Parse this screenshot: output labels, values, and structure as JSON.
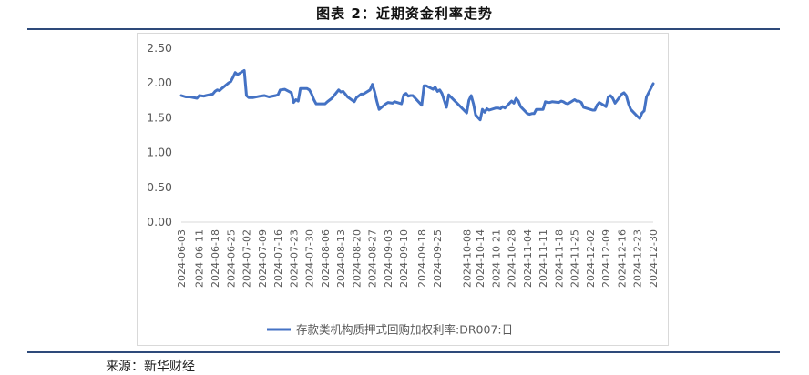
{
  "figure": {
    "title": "图表 2：近期资金利率走势",
    "source": "来源：新华财经"
  },
  "chart_data": {
    "type": "line",
    "title": "",
    "xlabel": "",
    "ylabel": "",
    "ylim": [
      0,
      2.5
    ],
    "yticks": [
      0.0,
      0.5,
      1.0,
      1.5,
      2.0,
      2.5
    ],
    "ytick_labels": [
      "0.00",
      "0.50",
      "1.00",
      "1.50",
      "2.00",
      "2.50"
    ],
    "grid": false,
    "legend_position": "bottom",
    "line_color": "#4472c4",
    "xtick_labels": [
      "2024-06-03",
      "2024-06-11",
      "2024-06-18",
      "2024-06-25",
      "2024-07-02",
      "2024-07-09",
      "2024-07-16",
      "2024-07-23",
      "2024-07-30",
      "2024-08-06",
      "2024-08-13",
      "2024-08-20",
      "2024-08-27",
      "2024-09-03",
      "2024-09-10",
      "2024-09-18",
      "2024-09-25",
      "2024-10-08",
      "2024-10-14",
      "2024-10-21",
      "2024-10-28",
      "2024-11-04",
      "2024-11-11",
      "2024-11-18",
      "2024-11-25",
      "2024-12-02",
      "2024-12-09",
      "2024-12-16",
      "2024-12-23",
      "2024-12-30"
    ],
    "series": [
      {
        "name": "存款类机构质押式回购加权利率:DR007:日",
        "points": [
          [
            "2024-06-03",
            1.82
          ],
          [
            "2024-06-05",
            1.8
          ],
          [
            "2024-06-07",
            1.8
          ],
          [
            "2024-06-10",
            1.78
          ],
          [
            "2024-06-11",
            1.82
          ],
          [
            "2024-06-13",
            1.81
          ],
          [
            "2024-06-14",
            1.82
          ],
          [
            "2024-06-17",
            1.84
          ],
          [
            "2024-06-18",
            1.88
          ],
          [
            "2024-06-19",
            1.9
          ],
          [
            "2024-06-20",
            1.89
          ],
          [
            "2024-06-21",
            1.92
          ],
          [
            "2024-06-24",
            2.0
          ],
          [
            "2024-06-25",
            2.02
          ],
          [
            "2024-06-26",
            2.08
          ],
          [
            "2024-06-27",
            2.15
          ],
          [
            "2024-06-28",
            2.12
          ],
          [
            "2024-07-01",
            2.18
          ],
          [
            "2024-07-02",
            1.82
          ],
          [
            "2024-07-03",
            1.79
          ],
          [
            "2024-07-05",
            1.79
          ],
          [
            "2024-07-08",
            1.81
          ],
          [
            "2024-07-10",
            1.82
          ],
          [
            "2024-07-12",
            1.8
          ],
          [
            "2024-07-15",
            1.82
          ],
          [
            "2024-07-16",
            1.83
          ],
          [
            "2024-07-17",
            1.9
          ],
          [
            "2024-07-19",
            1.91
          ],
          [
            "2024-07-22",
            1.86
          ],
          [
            "2024-07-23",
            1.72
          ],
          [
            "2024-07-24",
            1.76
          ],
          [
            "2024-07-25",
            1.74
          ],
          [
            "2024-07-26",
            1.92
          ],
          [
            "2024-07-29",
            1.92
          ],
          [
            "2024-07-30",
            1.9
          ],
          [
            "2024-07-31",
            1.84
          ],
          [
            "2024-08-01",
            1.76
          ],
          [
            "2024-08-02",
            1.7
          ],
          [
            "2024-08-05",
            1.7
          ],
          [
            "2024-08-06",
            1.7
          ],
          [
            "2024-08-07",
            1.73
          ],
          [
            "2024-08-09",
            1.78
          ],
          [
            "2024-08-12",
            1.9
          ],
          [
            "2024-08-13",
            1.87
          ],
          [
            "2024-08-14",
            1.88
          ],
          [
            "2024-08-15",
            1.84
          ],
          [
            "2024-08-16",
            1.8
          ],
          [
            "2024-08-19",
            1.73
          ],
          [
            "2024-08-20",
            1.79
          ],
          [
            "2024-08-22",
            1.84
          ],
          [
            "2024-08-23",
            1.84
          ],
          [
            "2024-08-26",
            1.9
          ],
          [
            "2024-08-27",
            1.98
          ],
          [
            "2024-08-28",
            1.88
          ],
          [
            "2024-08-29",
            1.74
          ],
          [
            "2024-08-30",
            1.62
          ],
          [
            "2024-09-02",
            1.7
          ],
          [
            "2024-09-03",
            1.72
          ],
          [
            "2024-09-05",
            1.71
          ],
          [
            "2024-09-06",
            1.73
          ],
          [
            "2024-09-09",
            1.7
          ],
          [
            "2024-09-10",
            1.83
          ],
          [
            "2024-09-11",
            1.85
          ],
          [
            "2024-09-12",
            1.81
          ],
          [
            "2024-09-13",
            1.82
          ],
          [
            "2024-09-14",
            1.82
          ],
          [
            "2024-09-18",
            1.68
          ],
          [
            "2024-09-19",
            1.96
          ],
          [
            "2024-09-20",
            1.96
          ],
          [
            "2024-09-23",
            1.91
          ],
          [
            "2024-09-24",
            1.94
          ],
          [
            "2024-09-25",
            1.88
          ],
          [
            "2024-09-26",
            1.9
          ],
          [
            "2024-09-27",
            1.85
          ],
          [
            "2024-09-29",
            1.65
          ],
          [
            "2024-09-30",
            1.83
          ],
          [
            "2024-10-08",
            1.57
          ],
          [
            "2024-10-09",
            1.75
          ],
          [
            "2024-10-10",
            1.82
          ],
          [
            "2024-10-11",
            1.7
          ],
          [
            "2024-10-12",
            1.54
          ],
          [
            "2024-10-14",
            1.47
          ],
          [
            "2024-10-15",
            1.62
          ],
          [
            "2024-10-16",
            1.58
          ],
          [
            "2024-10-17",
            1.63
          ],
          [
            "2024-10-18",
            1.61
          ],
          [
            "2024-10-21",
            1.64
          ],
          [
            "2024-10-22",
            1.64
          ],
          [
            "2024-10-23",
            1.63
          ],
          [
            "2024-10-24",
            1.66
          ],
          [
            "2024-10-25",
            1.64
          ],
          [
            "2024-10-28",
            1.74
          ],
          [
            "2024-10-29",
            1.71
          ],
          [
            "2024-10-30",
            1.78
          ],
          [
            "2024-10-31",
            1.74
          ],
          [
            "2024-11-01",
            1.66
          ],
          [
            "2024-11-04",
            1.56
          ],
          [
            "2024-11-05",
            1.55
          ],
          [
            "2024-11-06",
            1.56
          ],
          [
            "2024-11-07",
            1.56
          ],
          [
            "2024-11-08",
            1.62
          ],
          [
            "2024-11-11",
            1.62
          ],
          [
            "2024-11-12",
            1.73
          ],
          [
            "2024-11-13",
            1.72
          ],
          [
            "2024-11-14",
            1.72
          ],
          [
            "2024-11-15",
            1.73
          ],
          [
            "2024-11-18",
            1.72
          ],
          [
            "2024-11-19",
            1.74
          ],
          [
            "2024-11-20",
            1.73
          ],
          [
            "2024-11-21",
            1.71
          ],
          [
            "2024-11-22",
            1.7
          ],
          [
            "2024-11-25",
            1.76
          ],
          [
            "2024-11-26",
            1.74
          ],
          [
            "2024-11-27",
            1.74
          ],
          [
            "2024-11-28",
            1.72
          ],
          [
            "2024-11-29",
            1.65
          ],
          [
            "2024-12-02",
            1.62
          ],
          [
            "2024-12-03",
            1.61
          ],
          [
            "2024-12-04",
            1.61
          ],
          [
            "2024-12-05",
            1.68
          ],
          [
            "2024-12-06",
            1.72
          ],
          [
            "2024-12-09",
            1.66
          ],
          [
            "2024-12-10",
            1.8
          ],
          [
            "2024-12-11",
            1.82
          ],
          [
            "2024-12-12",
            1.78
          ],
          [
            "2024-12-13",
            1.71
          ],
          [
            "2024-12-16",
            1.84
          ],
          [
            "2024-12-17",
            1.86
          ],
          [
            "2024-12-18",
            1.82
          ],
          [
            "2024-12-19",
            1.7
          ],
          [
            "2024-12-20",
            1.62
          ],
          [
            "2024-12-23",
            1.52
          ],
          [
            "2024-12-24",
            1.49
          ],
          [
            "2024-12-25",
            1.57
          ],
          [
            "2024-12-26",
            1.6
          ],
          [
            "2024-12-27",
            1.8
          ],
          [
            "2024-12-30",
            1.99
          ]
        ]
      }
    ]
  }
}
